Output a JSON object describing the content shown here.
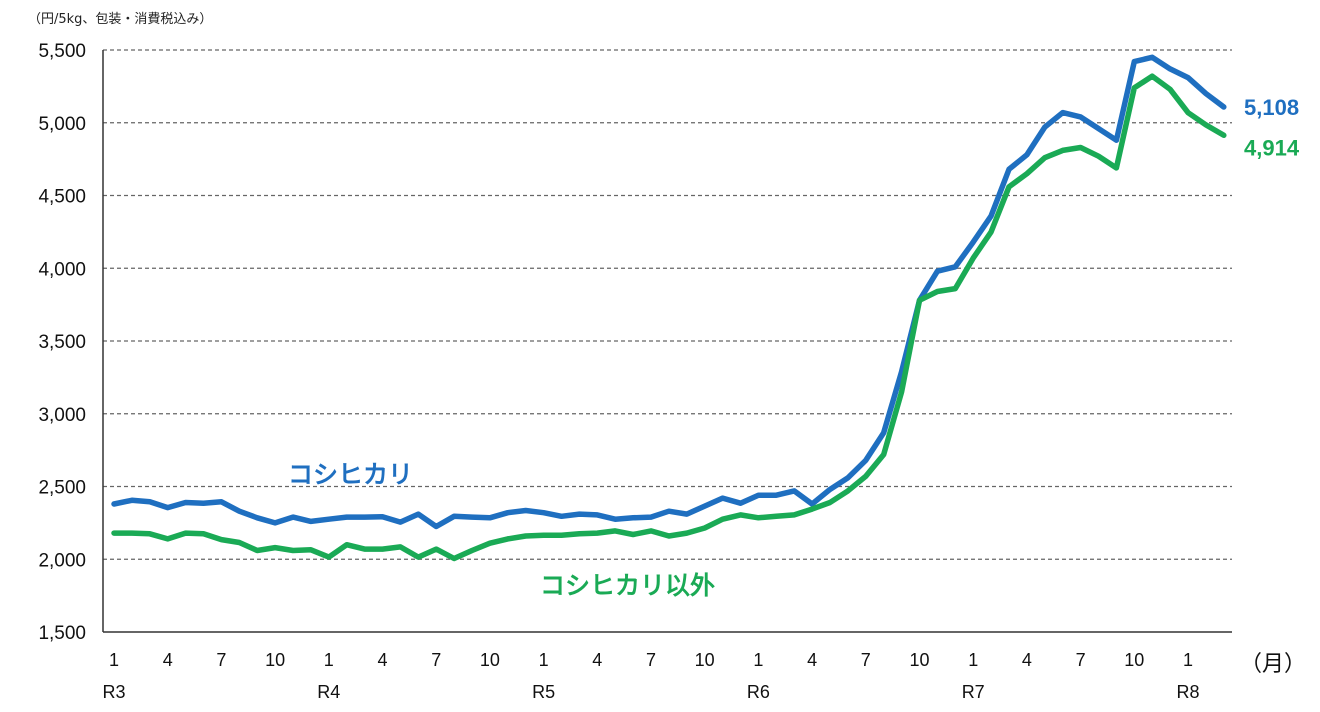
{
  "unit_note": "（円/5kg、包装・消費税込み）",
  "month_unit": "（月）",
  "chart_data": {
    "type": "line",
    "title": "",
    "ylim": [
      1500,
      5500
    ],
    "y_ticks": [
      1500,
      2000,
      2500,
      3000,
      3500,
      4000,
      4500,
      5000,
      5500
    ],
    "y_tick_labels": [
      "1,500",
      "2,000",
      "2,500",
      "3,000",
      "3,500",
      "4,000",
      "4,500",
      "5,000",
      "5,500"
    ],
    "grid": true,
    "x_tick_labels": [
      {
        "i": 0,
        "month": "1",
        "year": "R3"
      },
      {
        "i": 3,
        "month": "4",
        "year": ""
      },
      {
        "i": 6,
        "month": "7",
        "year": ""
      },
      {
        "i": 9,
        "month": "10",
        "year": ""
      },
      {
        "i": 12,
        "month": "1",
        "year": "R4"
      },
      {
        "i": 15,
        "month": "4",
        "year": ""
      },
      {
        "i": 18,
        "month": "7",
        "year": ""
      },
      {
        "i": 21,
        "month": "10",
        "year": ""
      },
      {
        "i": 24,
        "month": "1",
        "year": "R5"
      },
      {
        "i": 27,
        "month": "4",
        "year": ""
      },
      {
        "i": 30,
        "month": "7",
        "year": ""
      },
      {
        "i": 33,
        "month": "10",
        "year": ""
      },
      {
        "i": 36,
        "month": "1",
        "year": "R6"
      },
      {
        "i": 39,
        "month": "4",
        "year": ""
      },
      {
        "i": 42,
        "month": "7",
        "year": ""
      },
      {
        "i": 45,
        "month": "10",
        "year": ""
      },
      {
        "i": 48,
        "month": "1",
        "year": "R7"
      },
      {
        "i": 51,
        "month": "4",
        "year": ""
      },
      {
        "i": 54,
        "month": "7",
        "year": ""
      },
      {
        "i": 57,
        "month": "10",
        "year": ""
      },
      {
        "i": 60,
        "month": "1",
        "year": "R8"
      }
    ],
    "series": [
      {
        "name": "コシヒカリ",
        "color": "#1f6fc0",
        "end_label": "5,108",
        "values": [
          2380,
          2405,
          2395,
          2355,
          2390,
          2385,
          2395,
          2330,
          2285,
          2250,
          2290,
          2260,
          2275,
          2290,
          2290,
          2292,
          2255,
          2310,
          2225,
          2295,
          2290,
          2285,
          2320,
          2335,
          2320,
          2295,
          2310,
          2305,
          2275,
          2285,
          2290,
          2330,
          2310,
          2365,
          2420,
          2385,
          2440,
          2440,
          2470,
          2380,
          2480,
          2560,
          2680,
          2870,
          3290,
          3780,
          3980,
          4010,
          4180,
          4360,
          4680,
          4780,
          4970,
          5070,
          5040,
          4960,
          4880,
          5420,
          5450,
          5370,
          5310,
          5200,
          5108
        ]
      },
      {
        "name": "コシヒカリ以外",
        "color": "#1aaa55",
        "end_label": "4,914",
        "values": [
          2180,
          2180,
          2175,
          2140,
          2180,
          2175,
          2135,
          2115,
          2060,
          2080,
          2060,
          2065,
          2015,
          2100,
          2070,
          2070,
          2085,
          2015,
          2070,
          2005,
          2060,
          2110,
          2140,
          2160,
          2165,
          2165,
          2175,
          2180,
          2195,
          2170,
          2195,
          2160,
          2180,
          2215,
          2275,
          2305,
          2285,
          2295,
          2305,
          2345,
          2390,
          2470,
          2570,
          2720,
          3150,
          3780,
          3840,
          3860,
          4070,
          4250,
          4560,
          4650,
          4760,
          4810,
          4830,
          4770,
          4690,
          5240,
          5320,
          5230,
          5070,
          4985,
          4914
        ]
      }
    ],
    "annotations": [
      {
        "text": "コシヒカリ",
        "color": "#1f6fc0",
        "series": 0
      },
      {
        "text": "コシヒカリ以外",
        "color": "#1aaa55",
        "series": 1
      }
    ]
  }
}
